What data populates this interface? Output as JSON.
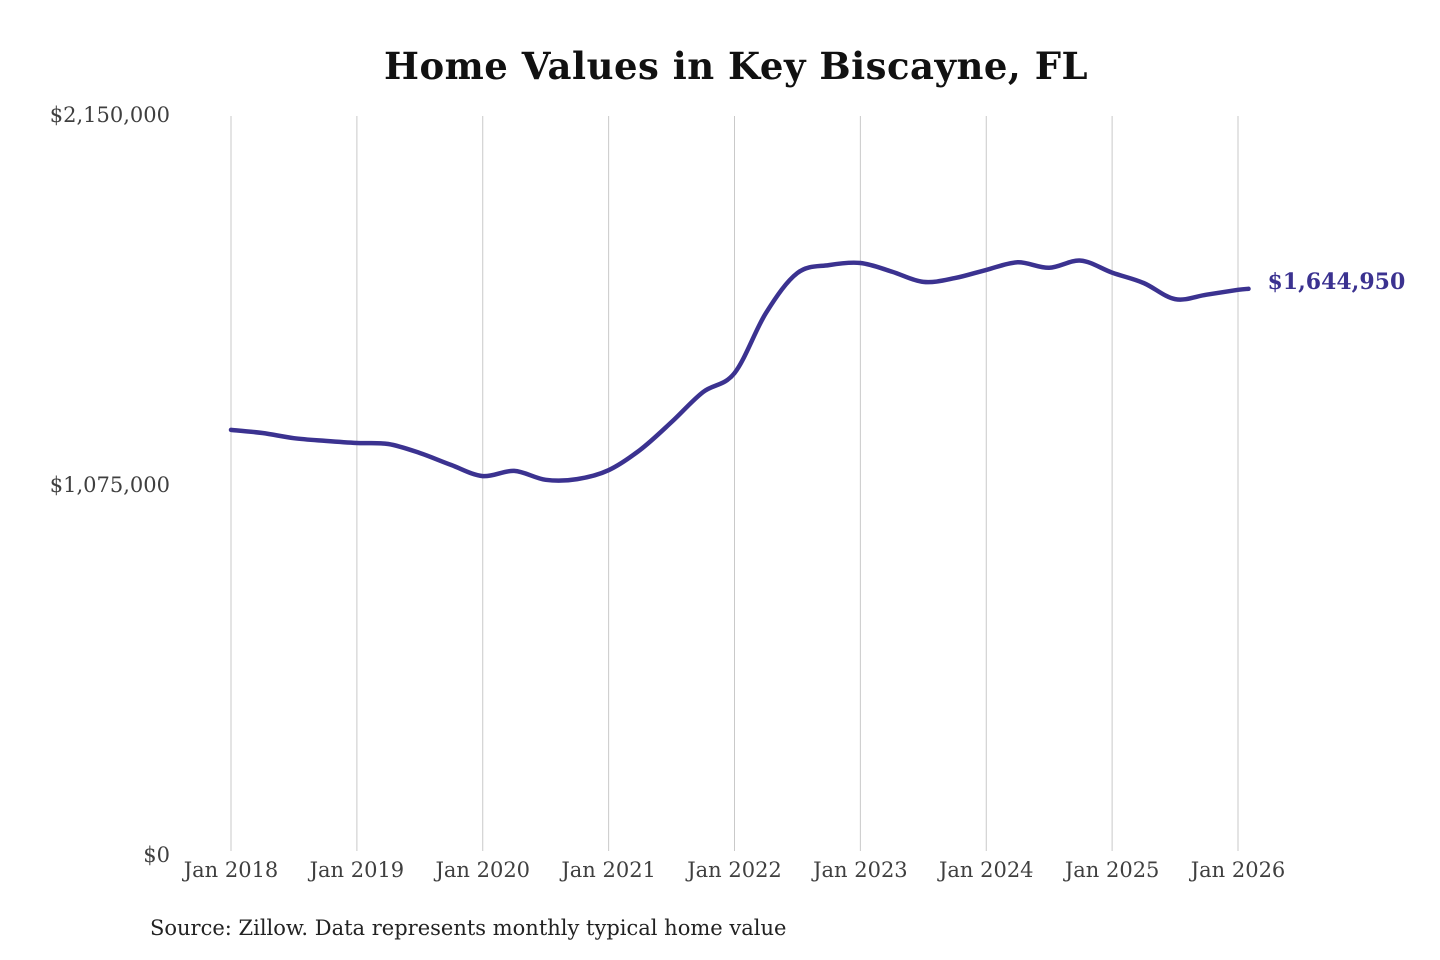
{
  "chart_data": {
    "type": "line",
    "title": "Home Values in Key Biscayne, FL",
    "source": "Source: Zillow. Data represents monthly typical home value",
    "series_name": "Monthly typical home value",
    "unit": "USD",
    "x": [
      "2018-01",
      "2018-04",
      "2018-07",
      "2018-10",
      "2019-01",
      "2019-04",
      "2019-07",
      "2019-10",
      "2020-01",
      "2020-04",
      "2020-07",
      "2020-10",
      "2021-01",
      "2021-04",
      "2021-07",
      "2021-10",
      "2022-01",
      "2022-04",
      "2022-07",
      "2022-10",
      "2023-01",
      "2023-04",
      "2023-07",
      "2023-10",
      "2024-01",
      "2024-04",
      "2024-07",
      "2024-10",
      "2025-01",
      "2025-04",
      "2025-07",
      "2025-10",
      "2026-01",
      "2026-02"
    ],
    "values": [
      1235000,
      1226000,
      1211000,
      1203000,
      1197000,
      1194000,
      1168000,
      1133000,
      1101000,
      1116000,
      1090000,
      1092000,
      1118000,
      1177000,
      1258000,
      1345000,
      1400000,
      1575000,
      1691000,
      1714000,
      1720000,
      1695000,
      1665000,
      1676000,
      1700000,
      1722000,
      1706000,
      1727000,
      1692000,
      1662000,
      1615000,
      1628000,
      1642000,
      1644950
    ],
    "latest_value": 1644950,
    "latest_label": "$1,644,950",
    "x_tick_labels": [
      "Jan 2018",
      "Jan 2019",
      "Jan 2020",
      "Jan 2021",
      "Jan 2022",
      "Jan 2023",
      "Jan 2024",
      "Jan 2025",
      "Jan 2026"
    ],
    "y_ticks": [
      {
        "label": "$0",
        "value": 0
      },
      {
        "label": "$1,075,000",
        "value": 1075000
      },
      {
        "label": "$2,150,000",
        "value": 2150000
      }
    ],
    "ylim": [
      0,
      2150000
    ],
    "grid": "vertical-only",
    "legend": "none",
    "colors": {
      "line": "#3b3290",
      "label": "#3b3290",
      "gridline": "#c9c9c9",
      "tick_text": "#3f3f3f",
      "title_text": "#111111",
      "source_text": "#222222",
      "background": "#ffffff"
    }
  }
}
